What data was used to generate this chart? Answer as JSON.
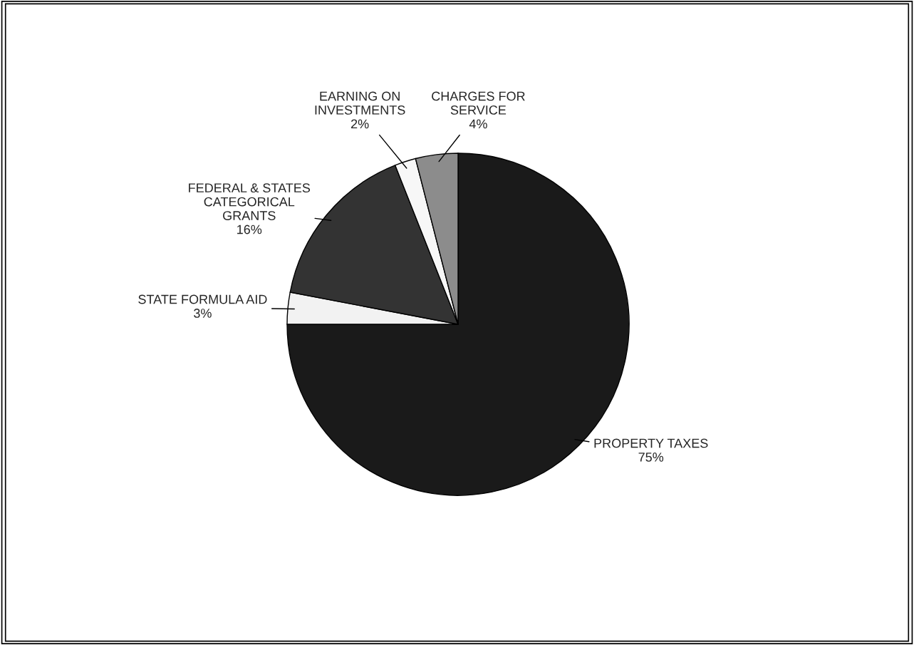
{
  "chart_data": {
    "type": "pie",
    "categories": [
      "PROPERTY TAXES",
      "STATE FORMULA AID",
      "FEDERAL & STATES\nCATEGORICAL\nGRANTS",
      "EARNING ON\nINVESTMENTS",
      "CHARGES FOR\nSERVICE"
    ],
    "values": [
      75,
      3,
      16,
      2,
      4
    ],
    "value_labels": [
      "75%",
      "3%",
      "16%",
      "2%",
      "4%"
    ],
    "colors": [
      "#1a1a1a",
      "#f2f2f2",
      "#333333",
      "#f7f7f7",
      "#8c8c8c"
    ]
  }
}
